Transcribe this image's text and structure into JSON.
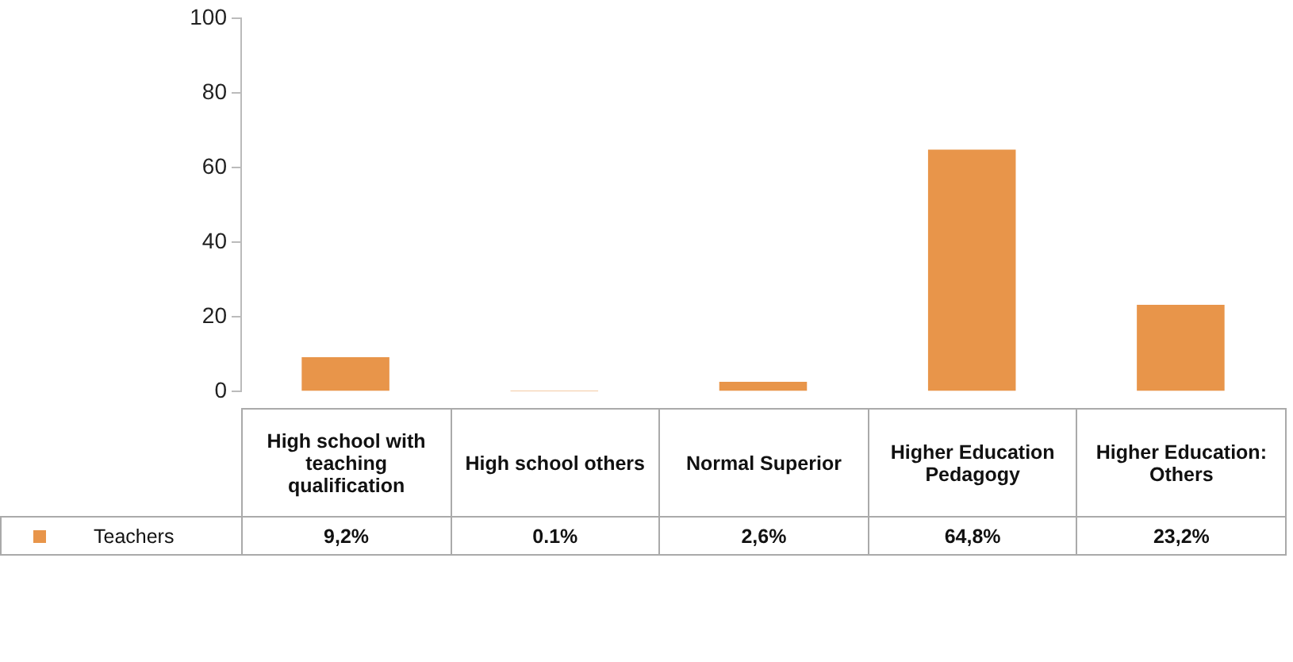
{
  "chart_data": {
    "type": "bar",
    "categories": [
      "High school with teaching qualification",
      "High school others",
      "Normal Superior",
      "Higher Education Pedagogy",
      "Higher Education: Others"
    ],
    "series": [
      {
        "name": "Teachers",
        "color": "#e8954a",
        "values": [
          9.2,
          0.1,
          2.6,
          64.8,
          23.2
        ],
        "value_labels": [
          "9,2%",
          "0.1%",
          "2,6%",
          "64,8%",
          "23,2%"
        ]
      }
    ],
    "ylim": [
      0,
      100
    ],
    "yticks": [
      0,
      20,
      40,
      60,
      80,
      100
    ],
    "grid": false
  }
}
